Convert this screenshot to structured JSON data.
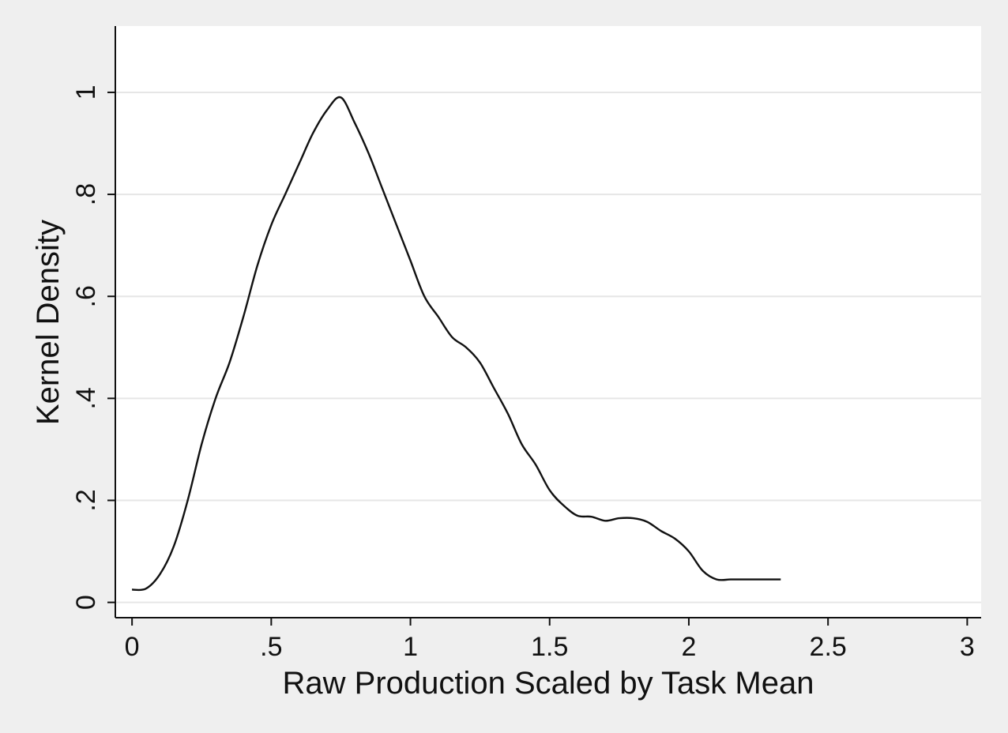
{
  "chart_data": {
    "type": "line",
    "title": "",
    "xlabel": "Raw Production Scaled by Task Mean",
    "ylabel": "Kernel Density",
    "xlim": [
      -0.06,
      3.05
    ],
    "ylim": [
      -0.03,
      1.13
    ],
    "xticks": [
      0,
      0.5,
      1,
      1.5,
      2,
      2.5,
      3
    ],
    "xtick_labels": [
      "0",
      ".5",
      "1",
      "1.5",
      "2",
      "2.5",
      "3"
    ],
    "yticks": [
      0,
      0.2,
      0.4,
      0.6,
      0.8,
      1
    ],
    "ytick_labels": [
      "0",
      ".2",
      ".4",
      ".6",
      ".8",
      "1"
    ],
    "grid": true,
    "legend": "none",
    "colors": {
      "page_background": "#efefef",
      "plot_background": "#ffffff",
      "gridline": "#e6e6e6",
      "line": "#111111",
      "axis": "#111111"
    },
    "series": [
      {
        "x": [
          0.0,
          0.05,
          0.1,
          0.15,
          0.2,
          0.25,
          0.3,
          0.35,
          0.4,
          0.45,
          0.5,
          0.55,
          0.6,
          0.65,
          0.7,
          0.75,
          0.8,
          0.85,
          0.9,
          0.95,
          1.0,
          1.05,
          1.1,
          1.15,
          1.2,
          1.25,
          1.3,
          1.35,
          1.4,
          1.45,
          1.5,
          1.55,
          1.6,
          1.65,
          1.7,
          1.75,
          1.8,
          1.85,
          1.9,
          1.95,
          2.0,
          2.05,
          2.1,
          2.15,
          2.2,
          2.25,
          2.3,
          2.33
        ],
        "y": [
          0.025,
          0.027,
          0.055,
          0.11,
          0.2,
          0.31,
          0.4,
          0.47,
          0.56,
          0.66,
          0.74,
          0.8,
          0.86,
          0.92,
          0.965,
          0.99,
          0.94,
          0.88,
          0.81,
          0.74,
          0.67,
          0.6,
          0.56,
          0.52,
          0.5,
          0.47,
          0.42,
          0.37,
          0.31,
          0.27,
          0.22,
          0.19,
          0.17,
          0.168,
          0.16,
          0.165,
          0.165,
          0.158,
          0.14,
          0.125,
          0.1,
          0.062,
          0.045,
          0.045,
          0.045,
          0.045,
          0.045,
          0.045
        ]
      }
    ]
  }
}
